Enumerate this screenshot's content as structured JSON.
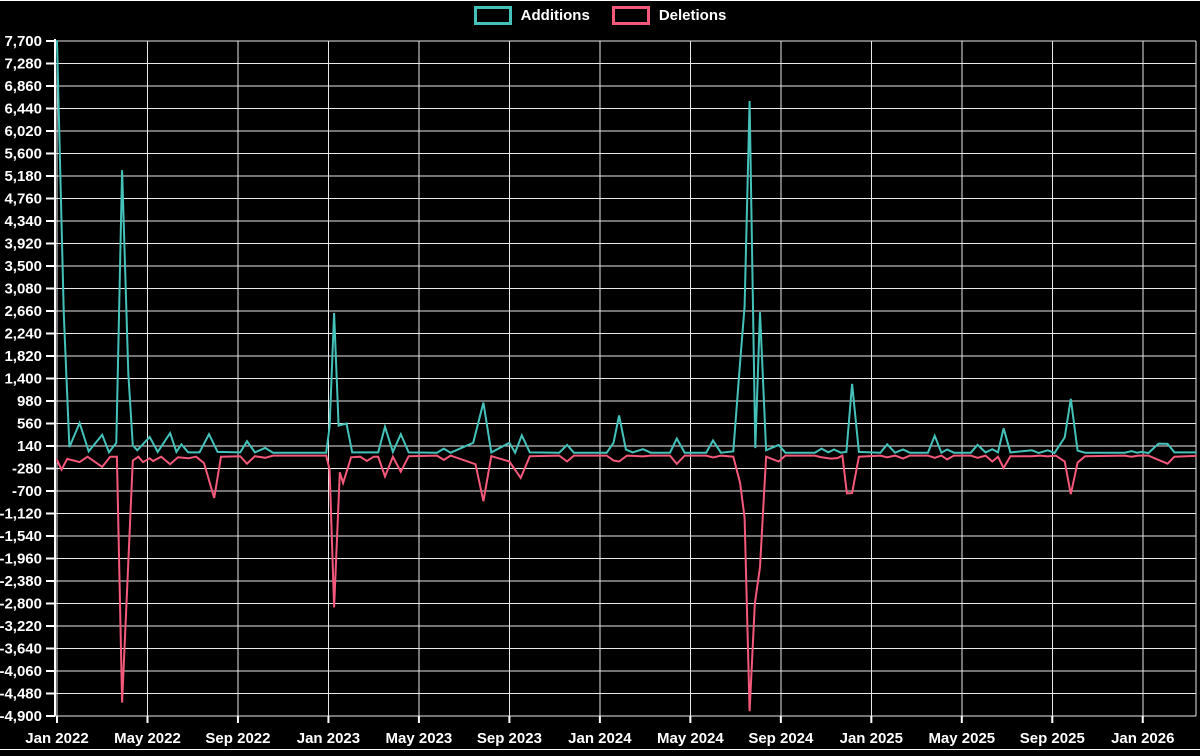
{
  "legend": {
    "items": [
      {
        "label": "Additions",
        "series_key": "additions"
      },
      {
        "label": "Deletions",
        "series_key": "deletions"
      }
    ]
  },
  "colors": {
    "background": "#000000",
    "grid": "#e8e8e8",
    "axis": "#ffffff",
    "text": "#ffffff",
    "additions": "#44c2ba",
    "deletions": "#f4597b"
  },
  "chart_data": {
    "type": "line",
    "title": "",
    "xlabel": "",
    "ylabel": "",
    "grid": true,
    "legend_position": "top-center",
    "x_axis": {
      "unit": "months since Jan 2022",
      "min": -0.1,
      "max": 50.4,
      "ticks": [
        {
          "pos": 0,
          "label": "Jan 2022"
        },
        {
          "pos": 4,
          "label": "May 2022"
        },
        {
          "pos": 8,
          "label": "Sep 2022"
        },
        {
          "pos": 12,
          "label": "Jan 2023"
        },
        {
          "pos": 16,
          "label": "May 2023"
        },
        {
          "pos": 20,
          "label": "Sep 2023"
        },
        {
          "pos": 24,
          "label": "Jan 2024"
        },
        {
          "pos": 28,
          "label": "May 2024"
        },
        {
          "pos": 32,
          "label": "Sep 2024"
        },
        {
          "pos": 36,
          "label": "Jan 2025"
        },
        {
          "pos": 40,
          "label": "May 2025"
        },
        {
          "pos": 44,
          "label": "Sep 2025"
        },
        {
          "pos": 48,
          "label": "Jan 2026"
        }
      ]
    },
    "y_axis": {
      "min": -4900,
      "max": 7700,
      "step": 420,
      "thousands_separator": true
    },
    "series": [
      {
        "name": "Additions",
        "color_key": "additions",
        "points": [
          [
            0,
            7700
          ],
          [
            0.3,
            2600
          ],
          [
            0.55,
            120
          ],
          [
            1,
            570
          ],
          [
            1.4,
            40
          ],
          [
            2,
            350
          ],
          [
            2.3,
            20
          ],
          [
            2.62,
            200
          ],
          [
            2.88,
            5290
          ],
          [
            3.15,
            1500
          ],
          [
            3.35,
            150
          ],
          [
            3.55,
            60
          ],
          [
            4.1,
            310
          ],
          [
            4.45,
            30
          ],
          [
            5,
            380
          ],
          [
            5.28,
            30
          ],
          [
            5.5,
            170
          ],
          [
            5.8,
            20
          ],
          [
            6.3,
            20
          ],
          [
            6.72,
            360
          ],
          [
            7.1,
            30
          ],
          [
            8.1,
            20
          ],
          [
            8.4,
            230
          ],
          [
            8.75,
            20
          ],
          [
            9.2,
            105
          ],
          [
            9.55,
            15
          ],
          [
            11.9,
            15
          ],
          [
            12.05,
            500
          ],
          [
            12.25,
            2620
          ],
          [
            12.45,
            520
          ],
          [
            12.8,
            560
          ],
          [
            13.05,
            20
          ],
          [
            14.2,
            20
          ],
          [
            14.5,
            500
          ],
          [
            14.85,
            30
          ],
          [
            15.2,
            360
          ],
          [
            15.55,
            20
          ],
          [
            16.8,
            15
          ],
          [
            17.1,
            90
          ],
          [
            17.4,
            15
          ],
          [
            18.4,
            200
          ],
          [
            18.85,
            950
          ],
          [
            19.2,
            20
          ],
          [
            20,
            200
          ],
          [
            20.25,
            15
          ],
          [
            20.55,
            340
          ],
          [
            20.9,
            20
          ],
          [
            22.2,
            15
          ],
          [
            22.55,
            160
          ],
          [
            22.85,
            15
          ],
          [
            24.3,
            15
          ],
          [
            24.6,
            200
          ],
          [
            24.85,
            710
          ],
          [
            25.15,
            75
          ],
          [
            25.45,
            20
          ],
          [
            25.9,
            80
          ],
          [
            26.25,
            15
          ],
          [
            27.1,
            15
          ],
          [
            27.4,
            280
          ],
          [
            27.75,
            15
          ],
          [
            28.7,
            15
          ],
          [
            29,
            245
          ],
          [
            29.35,
            15
          ],
          [
            29.9,
            40
          ],
          [
            30.2,
            1700
          ],
          [
            30.4,
            2750
          ],
          [
            30.62,
            6580
          ],
          [
            30.87,
            100
          ],
          [
            31.08,
            2640
          ],
          [
            31.35,
            60
          ],
          [
            31.9,
            160
          ],
          [
            32.2,
            15
          ],
          [
            33.5,
            15
          ],
          [
            33.8,
            90
          ],
          [
            34.1,
            20
          ],
          [
            34.35,
            75
          ],
          [
            34.65,
            15
          ],
          [
            34.9,
            30
          ],
          [
            35.15,
            1300
          ],
          [
            35.45,
            30
          ],
          [
            36.4,
            15
          ],
          [
            36.7,
            170
          ],
          [
            37.05,
            15
          ],
          [
            37.4,
            75
          ],
          [
            37.7,
            15
          ],
          [
            38.5,
            15
          ],
          [
            38.8,
            330
          ],
          [
            39.1,
            15
          ],
          [
            39.35,
            75
          ],
          [
            39.65,
            15
          ],
          [
            40.4,
            15
          ],
          [
            40.7,
            160
          ],
          [
            41.05,
            20
          ],
          [
            41.35,
            80
          ],
          [
            41.6,
            20
          ],
          [
            41.85,
            470
          ],
          [
            42.15,
            20
          ],
          [
            43.1,
            60
          ],
          [
            43.4,
            10
          ],
          [
            43.8,
            60
          ],
          [
            44.1,
            10
          ],
          [
            44.55,
            300
          ],
          [
            44.82,
            1020
          ],
          [
            45.12,
            55
          ],
          [
            45.45,
            15
          ],
          [
            47.2,
            15
          ],
          [
            47.5,
            45
          ],
          [
            47.75,
            15
          ],
          [
            47.95,
            30
          ],
          [
            48.25,
            10
          ],
          [
            48.7,
            185
          ],
          [
            49.1,
            180
          ],
          [
            49.4,
            20
          ],
          [
            50.35,
            20
          ]
        ]
      },
      {
        "name": "Deletions",
        "color_key": "deletions",
        "points": [
          [
            0,
            -120
          ],
          [
            0.2,
            -300
          ],
          [
            0.45,
            -100
          ],
          [
            1,
            -160
          ],
          [
            1.35,
            -60
          ],
          [
            2,
            -250
          ],
          [
            2.35,
            -60
          ],
          [
            2.65,
            -60
          ],
          [
            2.88,
            -4650
          ],
          [
            3.35,
            -130
          ],
          [
            3.6,
            -60
          ],
          [
            3.8,
            -160
          ],
          [
            4.1,
            -90
          ],
          [
            4.25,
            -140
          ],
          [
            4.6,
            -60
          ],
          [
            5,
            -200
          ],
          [
            5.35,
            -70
          ],
          [
            5.8,
            -90
          ],
          [
            6.15,
            -60
          ],
          [
            6.5,
            -180
          ],
          [
            6.95,
            -830
          ],
          [
            7.25,
            -60
          ],
          [
            8.1,
            -50
          ],
          [
            8.4,
            -190
          ],
          [
            8.75,
            -50
          ],
          [
            9.2,
            -80
          ],
          [
            9.55,
            -40
          ],
          [
            11.9,
            -40
          ],
          [
            12.05,
            -300
          ],
          [
            12.25,
            -2870
          ],
          [
            12.5,
            -350
          ],
          [
            12.65,
            -550
          ],
          [
            13,
            -70
          ],
          [
            13.4,
            -60
          ],
          [
            13.7,
            -140
          ],
          [
            14,
            -60
          ],
          [
            14.2,
            -60
          ],
          [
            14.5,
            -430
          ],
          [
            14.85,
            -60
          ],
          [
            15.2,
            -340
          ],
          [
            15.55,
            -50
          ],
          [
            16.8,
            -40
          ],
          [
            17.1,
            -120
          ],
          [
            17.4,
            -40
          ],
          [
            18.5,
            -200
          ],
          [
            18.85,
            -890
          ],
          [
            19.2,
            -50
          ],
          [
            20,
            -150
          ],
          [
            20.5,
            -455
          ],
          [
            20.9,
            -50
          ],
          [
            22.2,
            -40
          ],
          [
            22.55,
            -150
          ],
          [
            22.85,
            -40
          ],
          [
            24.3,
            -40
          ],
          [
            24.6,
            -130
          ],
          [
            24.85,
            -150
          ],
          [
            25.2,
            -40
          ],
          [
            25.9,
            -55
          ],
          [
            26.25,
            -40
          ],
          [
            27.1,
            -40
          ],
          [
            27.4,
            -195
          ],
          [
            27.75,
            -40
          ],
          [
            28.7,
            -40
          ],
          [
            29,
            -75
          ],
          [
            29.35,
            -40
          ],
          [
            29.9,
            -60
          ],
          [
            30.2,
            -550
          ],
          [
            30.4,
            -1200
          ],
          [
            30.62,
            -4810
          ],
          [
            30.85,
            -2810
          ],
          [
            31.08,
            -2120
          ],
          [
            31.35,
            -60
          ],
          [
            31.9,
            -150
          ],
          [
            32.2,
            -40
          ],
          [
            33.5,
            -40
          ],
          [
            33.8,
            -70
          ],
          [
            34.2,
            -95
          ],
          [
            34.5,
            -85
          ],
          [
            34.72,
            -40
          ],
          [
            34.92,
            -745
          ],
          [
            35.15,
            -740
          ],
          [
            35.45,
            -60
          ],
          [
            36.4,
            -40
          ],
          [
            36.7,
            -70
          ],
          [
            37.05,
            -40
          ],
          [
            37.4,
            -95
          ],
          [
            37.7,
            -40
          ],
          [
            38.5,
            -40
          ],
          [
            38.8,
            -80
          ],
          [
            39.1,
            -40
          ],
          [
            39.35,
            -110
          ],
          [
            39.65,
            -40
          ],
          [
            40.4,
            -40
          ],
          [
            40.7,
            -80
          ],
          [
            41.05,
            -40
          ],
          [
            41.35,
            -150
          ],
          [
            41.6,
            -60
          ],
          [
            41.85,
            -270
          ],
          [
            42.15,
            -50
          ],
          [
            43.1,
            -50
          ],
          [
            43.45,
            -40
          ],
          [
            43.8,
            -55
          ],
          [
            44.15,
            -40
          ],
          [
            44.55,
            -150
          ],
          [
            44.82,
            -760
          ],
          [
            45.12,
            -170
          ],
          [
            45.45,
            -50
          ],
          [
            47.2,
            -40
          ],
          [
            47.5,
            -60
          ],
          [
            47.8,
            -40
          ],
          [
            48.25,
            -40
          ],
          [
            48.7,
            -120
          ],
          [
            49.1,
            -190
          ],
          [
            49.4,
            -60
          ],
          [
            50.35,
            -45
          ]
        ]
      }
    ]
  }
}
